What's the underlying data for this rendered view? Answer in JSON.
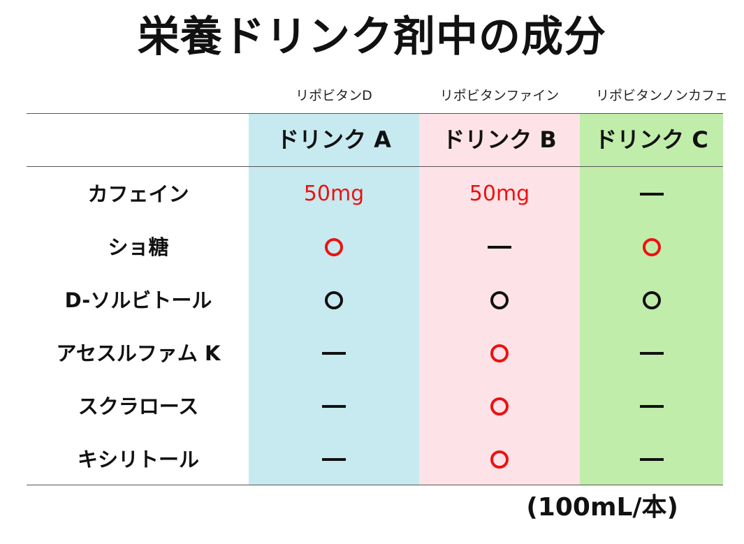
{
  "title": "栄養ドリンク剤中の成分",
  "colors": {
    "col_a_bg": "#c6eaf0",
    "col_b_bg": "#fde3e7",
    "col_c_bg": "#c0edaa",
    "highlight": "#ee1111",
    "normal": "#111111"
  },
  "products": [
    "リポビタンD",
    "リポビタンファイン",
    "リポビタンノンカフェ"
  ],
  "drinks": [
    "ドリンク A",
    "ドリンク B",
    "ドリンク C"
  ],
  "rows": [
    {
      "label": "カフェイン",
      "values": [
        {
          "type": "text",
          "text": "50mg",
          "color": "red"
        },
        {
          "type": "text",
          "text": "50mg",
          "color": "red"
        },
        {
          "type": "dash",
          "color": "black"
        }
      ]
    },
    {
      "label": "ショ糖",
      "values": [
        {
          "type": "circle",
          "color": "red"
        },
        {
          "type": "dash",
          "color": "black"
        },
        {
          "type": "circle",
          "color": "red"
        }
      ]
    },
    {
      "label": "D-ソルビトール",
      "values": [
        {
          "type": "circle",
          "color": "black"
        },
        {
          "type": "circle",
          "color": "black"
        },
        {
          "type": "circle",
          "color": "black"
        }
      ]
    },
    {
      "label": "アセスルファム K",
      "values": [
        {
          "type": "dash",
          "color": "black"
        },
        {
          "type": "circle",
          "color": "red"
        },
        {
          "type": "dash",
          "color": "black"
        }
      ]
    },
    {
      "label": "スクラロース",
      "values": [
        {
          "type": "dash",
          "color": "black"
        },
        {
          "type": "circle",
          "color": "red"
        },
        {
          "type": "dash",
          "color": "black"
        }
      ]
    },
    {
      "label": "キシリトール",
      "values": [
        {
          "type": "dash",
          "color": "black"
        },
        {
          "type": "circle",
          "color": "red"
        },
        {
          "type": "dash",
          "color": "black"
        }
      ]
    }
  ],
  "unit_note": "(100mL/本)"
}
